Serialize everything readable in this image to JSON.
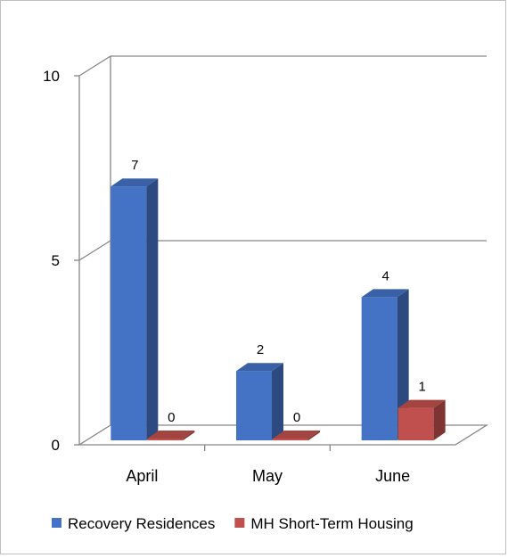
{
  "chart_data": {
    "type": "bar",
    "categories": [
      "April",
      "May",
      "June"
    ],
    "series": [
      {
        "name": "Recovery Residences",
        "values": [
          7,
          2,
          4
        ],
        "color": "#4472c4"
      },
      {
        "name": "MH Short-Term Housing",
        "values": [
          0,
          0,
          1
        ],
        "color": "#c0504d"
      }
    ],
    "ylim": [
      0,
      10
    ],
    "yticks": [
      0,
      5,
      10
    ],
    "data_labels": true,
    "grid": true,
    "legend_position": "bottom",
    "style": "3d-column"
  }
}
